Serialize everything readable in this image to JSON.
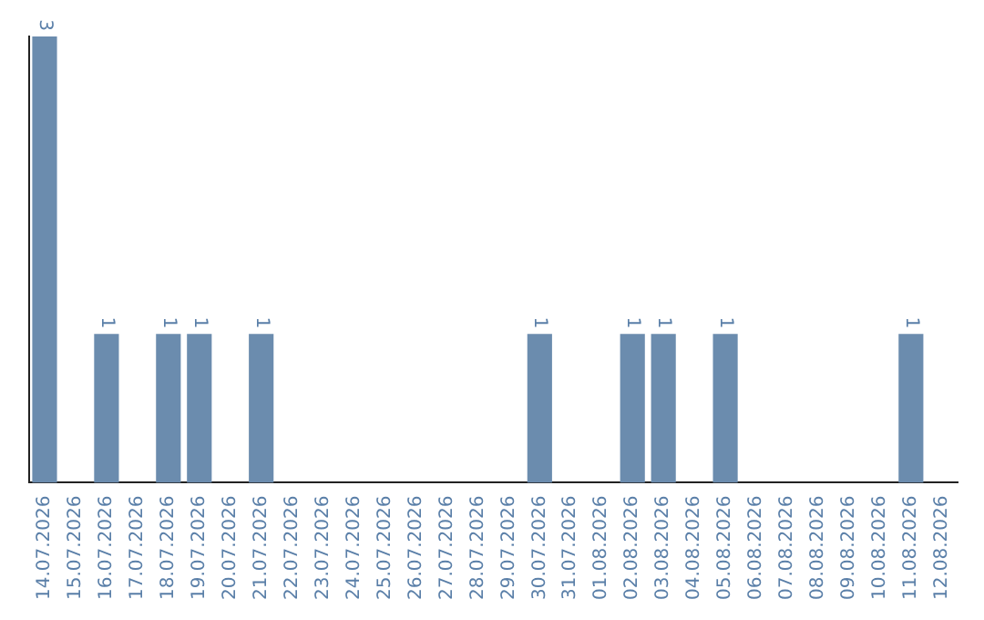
{
  "chart_data": {
    "type": "bar",
    "categories": [
      "14.07.2026",
      "15.07.2026",
      "16.07.2026",
      "17.07.2026",
      "18.07.2026",
      "19.07.2026",
      "20.07.2026",
      "21.07.2026",
      "22.07.2026",
      "23.07.2026",
      "24.07.2026",
      "25.07.2026",
      "26.07.2026",
      "27.07.2026",
      "28.07.2026",
      "29.07.2026",
      "30.07.2026",
      "31.07.2026",
      "01.08.2026",
      "02.08.2026",
      "03.08.2026",
      "04.08.2026",
      "05.08.2026",
      "06.08.2026",
      "07.08.2026",
      "08.08.2026",
      "09.08.2026",
      "10.08.2026",
      "11.08.2026",
      "12.08.2026"
    ],
    "values": [
      3,
      0,
      1,
      0,
      1,
      1,
      0,
      1,
      0,
      0,
      0,
      0,
      0,
      0,
      0,
      0,
      1,
      0,
      0,
      1,
      1,
      0,
      1,
      0,
      0,
      0,
      0,
      0,
      1,
      0
    ],
    "value_labels": [
      "3",
      null,
      "1",
      null,
      "1",
      "1",
      null,
      "1",
      null,
      null,
      null,
      null,
      null,
      null,
      null,
      null,
      "1",
      null,
      null,
      "1",
      "1",
      null,
      "1",
      null,
      null,
      null,
      null,
      null,
      "1",
      null
    ],
    "color": "#6b8cae",
    "grid": false,
    "legend": false
  }
}
